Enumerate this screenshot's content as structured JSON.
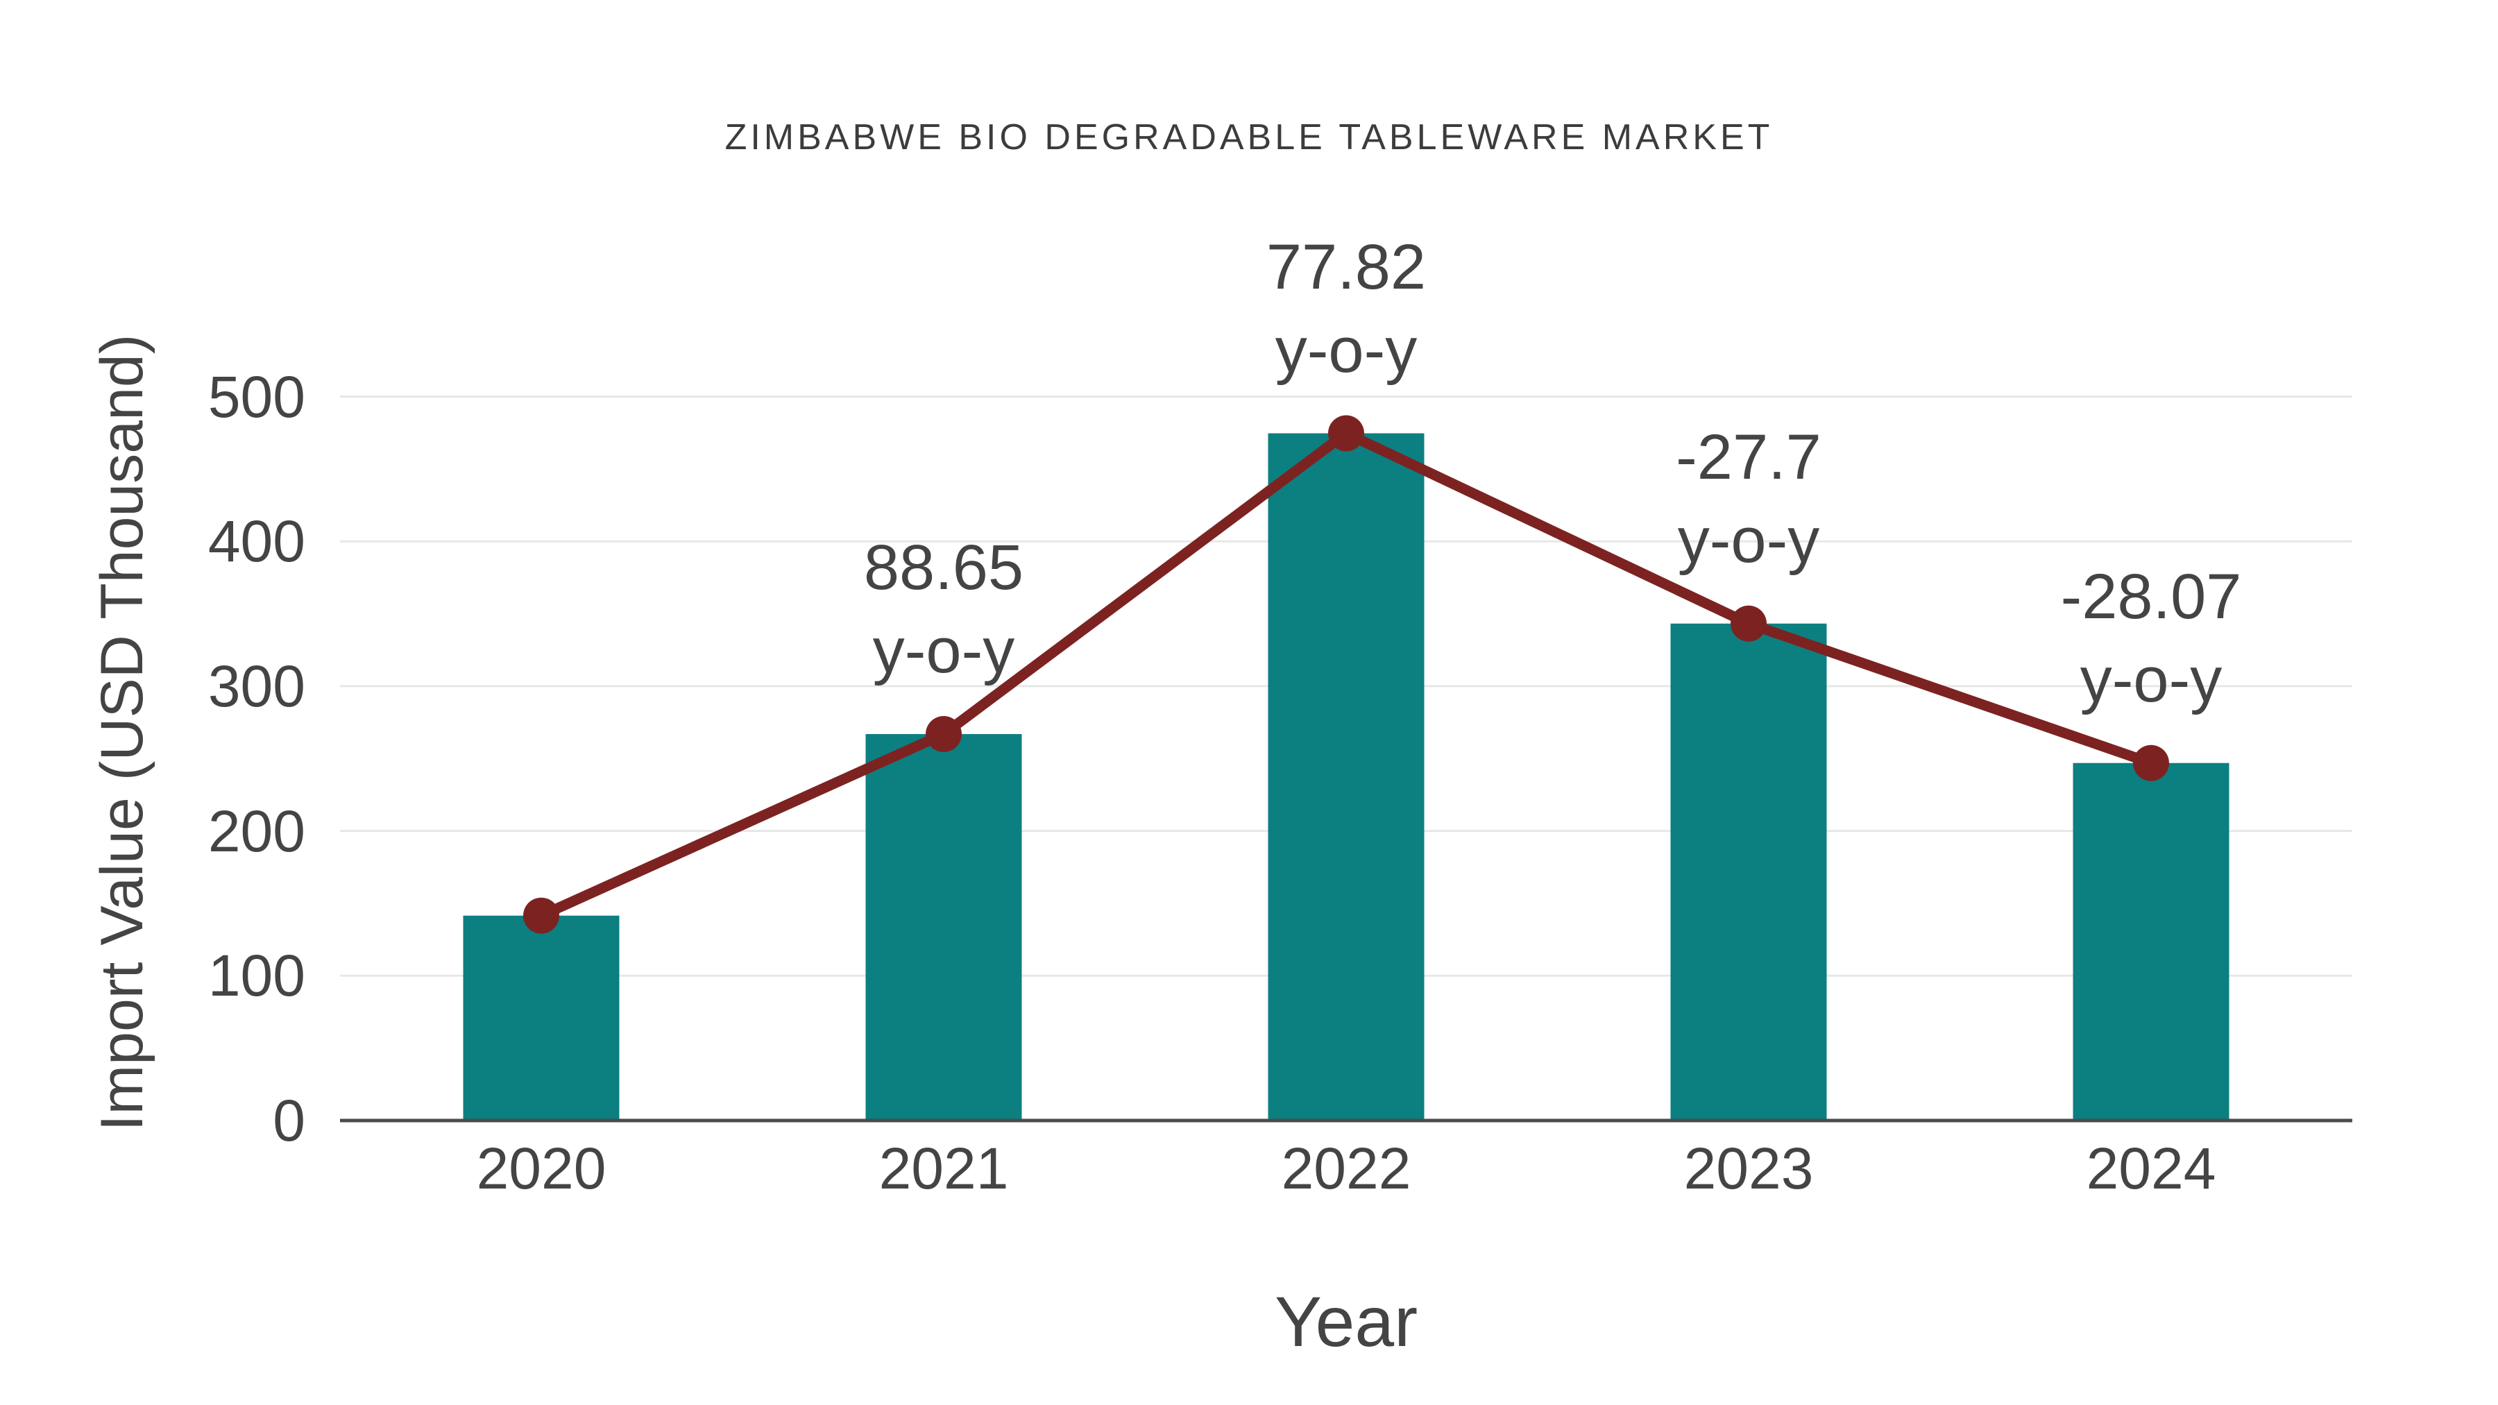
{
  "chart_data": {
    "type": "bar",
    "title": "ZIMBABWE BIO DEGRADABLE TABLEWARE MARKET",
    "xlabel": "Year",
    "ylabel": "Import Value (USD Thousand)",
    "categories": [
      "2020",
      "2021",
      "2022",
      "2023",
      "2024"
    ],
    "series": [
      {
        "name": "Import Value",
        "type": "bar",
        "color": "#0c7f81",
        "values": [
          141.5,
          266.9,
          474.6,
          343.2,
          246.9
        ]
      },
      {
        "name": "Year-over-year trend",
        "type": "line",
        "color": "#7c2322",
        "values": [
          141.5,
          266.9,
          474.6,
          343.2,
          246.9
        ]
      }
    ],
    "annotations": [
      {
        "category_index": 1,
        "value_line": "88.65",
        "label_line": "y-o-y"
      },
      {
        "category_index": 2,
        "value_line": "77.82",
        "label_line": "y-o-y"
      },
      {
        "category_index": 3,
        "value_line": "-27.7",
        "label_line": "y-o-y"
      },
      {
        "category_index": 4,
        "value_line": "-28.07",
        "label_line": "y-o-y"
      }
    ],
    "yticks": [
      0,
      100,
      200,
      300,
      400,
      500
    ],
    "ylim": [
      0,
      535
    ],
    "grid": true,
    "legend": "none",
    "colors": {
      "bar": "#0c7f81",
      "line": "#7c2322",
      "marker": "#7c2322",
      "text": "#444444",
      "title_text": "#3c3c3c",
      "gridline": "#e7e7e7",
      "axis_line": "#4b4b4b",
      "background": "#ffffff"
    }
  }
}
